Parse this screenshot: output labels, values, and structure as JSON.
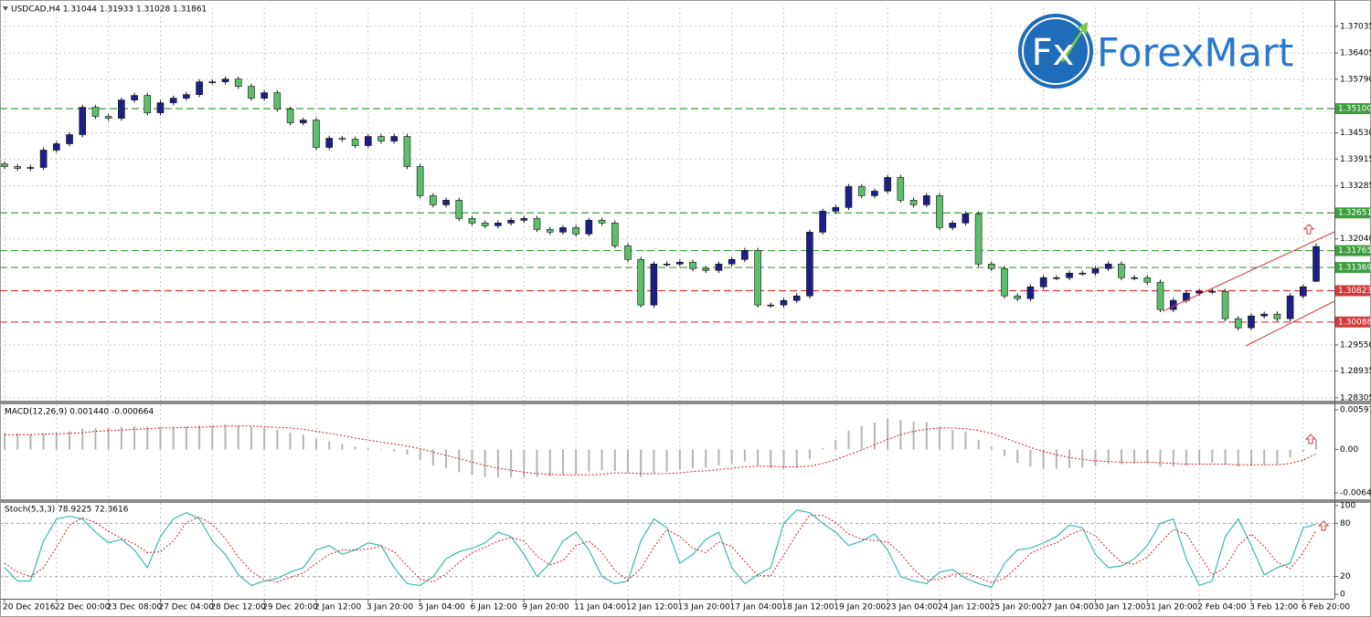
{
  "logo": {
    "icon": "Fx",
    "text": "ForexMart"
  },
  "chart_data": [
    {
      "type": "candlestick",
      "title": "USDCAD,H4  1.31044 1.31933 1.31028 1.31861",
      "categories": [
        "20 Dec 2016",
        null,
        null,
        null,
        "22 Dec 00:00",
        null,
        null,
        null,
        "23 Dec 08:00",
        null,
        null,
        null,
        "27 Dec 04:00",
        null,
        null,
        null,
        "28 Dec 12:00",
        null,
        null,
        null,
        "29 Dec 20:00",
        null,
        null,
        null,
        "2 Jan 12:00",
        null,
        null,
        null,
        "3 Jan 20:00",
        null,
        null,
        null,
        "5 Jan 04:00",
        null,
        null,
        null,
        "6 Jan 12:00",
        null,
        null,
        null,
        "9 Jan 20:00",
        null,
        null,
        null,
        "11 Jan 04:00",
        null,
        null,
        null,
        "12 Jan 12:00",
        null,
        null,
        null,
        "13 Jan 20:00",
        null,
        null,
        null,
        "17 Jan 04:00",
        null,
        null,
        null,
        "18 Jan 12:00",
        null,
        null,
        null,
        "19 Jan 20:00",
        null,
        null,
        null,
        "23 Jan 04:00",
        null,
        null,
        null,
        "24 Jan 12:00",
        null,
        null,
        null,
        "25 Jan 20:00",
        null,
        null,
        null,
        "27 Jan 04:00",
        null,
        null,
        null,
        "30 Jan 12:00",
        null,
        null,
        null,
        "31 Jan 20:00",
        null,
        null,
        null,
        "2 Feb 04:00",
        null,
        null,
        null,
        "3 Feb 12:00",
        null,
        null,
        null,
        "6 Feb 20:00",
        null
      ],
      "open": [
        1.338,
        1.3374,
        1.33697,
        1.33718,
        1.34125,
        1.34275,
        1.34489,
        1.35131,
        1.34917,
        1.34874,
        1.35302,
        1.35409,
        1.35002,
        1.35238,
        1.35345,
        1.3543,
        1.3573,
        1.3573,
        1.35794,
        1.35623,
        1.35345,
        1.35473,
        1.35088,
        1.34767,
        1.34831,
        1.34189,
        1.34403,
        1.34382,
        1.34232,
        1.34446,
        1.34339,
        1.34446,
        1.3374,
        1.33055,
        1.32841,
        1.32948,
        1.3252,
        1.32413,
        1.32349,
        1.32413,
        1.32477,
        1.3252,
        1.32263,
        1.32199,
        1.32306,
        1.32156,
        1.32477,
        1.32413,
        1.31878,
        1.31557,
        1.30487,
        1.3145,
        1.3145,
        1.31493,
        1.31343,
        1.313,
        1.3145,
        1.31557,
        1.31771,
        1.30487,
        1.30487,
        1.30594,
        1.30701,
        1.32199,
        1.32691,
        1.32777,
        1.33269,
        1.33055,
        1.33162,
        1.33483,
        1.32948,
        1.32841,
        1.33055,
        1.32306,
        1.32413,
        1.32627,
        1.3145,
        1.31343,
        1.30701,
        1.30637,
        1.30915,
        1.31129,
        1.31129,
        1.31236,
        1.31236,
        1.31343,
        1.3145,
        1.31129,
        1.31129,
        1.31022,
        1.3038,
        1.30594,
        1.30765,
        1.30808,
        1.30808,
        1.30166,
        1.29952,
        1.3023,
        1.30273,
        1.30166,
        1.30701,
        1.31044
      ],
      "high": [
        1.3386,
        1.338,
        1.33778,
        1.34185,
        1.34335,
        1.34549,
        1.35191,
        1.35191,
        1.34977,
        1.35362,
        1.35469,
        1.35469,
        1.35298,
        1.35405,
        1.3549,
        1.3579,
        1.3579,
        1.35854,
        1.35854,
        1.35683,
        1.35533,
        1.35533,
        1.35148,
        1.34891,
        1.34891,
        1.34463,
        1.34463,
        1.34442,
        1.34506,
        1.34506,
        1.34506,
        1.34506,
        1.338,
        1.33115,
        1.33008,
        1.33008,
        1.3258,
        1.32473,
        1.32473,
        1.32537,
        1.3258,
        1.3258,
        1.32323,
        1.32366,
        1.32366,
        1.32537,
        1.32537,
        1.32473,
        1.31938,
        1.31617,
        1.3151,
        1.3151,
        1.31553,
        1.31553,
        1.31403,
        1.3151,
        1.31617,
        1.31831,
        1.31831,
        1.30547,
        1.30654,
        1.30761,
        1.32259,
        1.32751,
        1.32837,
        1.33329,
        1.33329,
        1.33222,
        1.33543,
        1.33543,
        1.33008,
        1.33115,
        1.33115,
        1.32473,
        1.32687,
        1.32687,
        1.3151,
        1.31403,
        1.30761,
        1.30975,
        1.31189,
        1.31189,
        1.31296,
        1.31296,
        1.31403,
        1.3151,
        1.3151,
        1.31189,
        1.31189,
        1.31082,
        1.30654,
        1.30825,
        1.30868,
        1.30868,
        1.30868,
        1.30226,
        1.3029,
        1.30333,
        1.30333,
        1.30761,
        1.30975,
        1.31933
      ],
      "low": [
        1.3368,
        1.33637,
        1.33637,
        1.33658,
        1.34065,
        1.34215,
        1.34429,
        1.34857,
        1.34814,
        1.34814,
        1.35242,
        1.34942,
        1.34942,
        1.35178,
        1.35285,
        1.3537,
        1.3567,
        1.3567,
        1.35563,
        1.35285,
        1.35285,
        1.35028,
        1.34707,
        1.34707,
        1.34129,
        1.34129,
        1.34322,
        1.34172,
        1.34172,
        1.34279,
        1.34279,
        1.3368,
        1.32995,
        1.32781,
        1.32781,
        1.3246,
        1.32353,
        1.32289,
        1.32289,
        1.32353,
        1.32417,
        1.32203,
        1.32139,
        1.32139,
        1.32096,
        1.32096,
        1.32353,
        1.31818,
        1.31497,
        1.30427,
        1.30427,
        1.3139,
        1.3139,
        1.31283,
        1.3124,
        1.3124,
        1.3139,
        1.31497,
        1.30427,
        1.30427,
        1.30427,
        1.30534,
        1.30641,
        1.32139,
        1.32631,
        1.32717,
        1.32995,
        1.32995,
        1.33102,
        1.32888,
        1.32781,
        1.32781,
        1.32246,
        1.32246,
        1.32353,
        1.3139,
        1.31283,
        1.30641,
        1.30577,
        1.30577,
        1.30855,
        1.31069,
        1.31069,
        1.31176,
        1.31176,
        1.31283,
        1.31069,
        1.31069,
        1.30962,
        1.3032,
        1.3032,
        1.30534,
        1.30705,
        1.30748,
        1.30106,
        1.29892,
        1.29892,
        1.3017,
        1.30106,
        1.30106,
        1.30641,
        1.31028
      ],
      "close": [
        1.3374,
        1.33697,
        1.33718,
        1.34125,
        1.34275,
        1.34489,
        1.35131,
        1.34917,
        1.34874,
        1.35302,
        1.35409,
        1.35002,
        1.35238,
        1.35345,
        1.3543,
        1.3573,
        1.3573,
        1.35794,
        1.35623,
        1.35345,
        1.35473,
        1.35088,
        1.34767,
        1.34831,
        1.34189,
        1.34403,
        1.34382,
        1.34232,
        1.34446,
        1.34339,
        1.34446,
        1.3374,
        1.33055,
        1.32841,
        1.32948,
        1.3252,
        1.32413,
        1.32349,
        1.32413,
        1.32477,
        1.3252,
        1.32263,
        1.32199,
        1.32306,
        1.32156,
        1.32477,
        1.32413,
        1.31878,
        1.31557,
        1.30487,
        1.3145,
        1.3145,
        1.31493,
        1.31343,
        1.313,
        1.3145,
        1.31557,
        1.31771,
        1.30487,
        1.30487,
        1.30594,
        1.30701,
        1.32199,
        1.32691,
        1.32777,
        1.33269,
        1.33055,
        1.33162,
        1.33483,
        1.32948,
        1.32841,
        1.33055,
        1.32306,
        1.32413,
        1.32627,
        1.3145,
        1.31343,
        1.30701,
        1.30637,
        1.30915,
        1.31129,
        1.31129,
        1.31236,
        1.31236,
        1.31343,
        1.3145,
        1.31129,
        1.31129,
        1.31022,
        1.3038,
        1.30594,
        1.30765,
        1.30808,
        1.30808,
        1.30166,
        1.29952,
        1.3023,
        1.30273,
        1.30166,
        1.30701,
        1.30915,
        1.31861
      ],
      "up_color": "#1c1f86",
      "down_color": "#5cbf6a",
      "ylim": [
        1.2824,
        1.3748
      ],
      "yticks": [
        1.37035,
        1.36405,
        {
          "value": 1.3579,
          "label": "1.35790"
        },
        {
          "value": 1.3453,
          "label": "1.34530"
        },
        1.33915,
        1.33285,
        {
          "value": 1.3204,
          "label": "1.32040"
        },
        {
          "value": 1.2955,
          "label": "1.29550"
        },
        1.28935,
        1.28305
      ],
      "levels": [
        {
          "value": 1.351,
          "label": "1.35100",
          "color": "#3f9e3f"
        },
        {
          "value": 1.32651,
          "label": "1.32651",
          "color": "#3f9e3f"
        },
        {
          "value": 1.31765,
          "label": "1.31765",
          "color": "#3f9e3f"
        },
        {
          "value": 1.31369,
          "label": "1.31369",
          "color": "#3f9e3f"
        },
        {
          "value": 1.30823,
          "label": "1.30823",
          "color": "#d23b3b"
        },
        {
          "value": 1.30088,
          "label": "1.30088",
          "color": "#d23b3b"
        }
      ],
      "grid": true
    },
    {
      "type": "macd",
      "title": "MACD(12,26,9) 0.001440 -0.000664",
      "main": {
        "color": "#b4b4b4",
        "values": [
          0.0024,
          0.0024,
          0.0023,
          0.0024,
          0.0025,
          0.0027,
          0.0031,
          0.0032,
          0.0032,
          0.0034,
          0.0035,
          0.0034,
          0.0034,
          0.0034,
          0.0034,
          0.0036,
          0.0036,
          0.0037,
          0.0036,
          0.0034,
          0.0032,
          0.0029,
          0.0025,
          0.0022,
          0.0016,
          0.0012,
          0.0008,
          0.0004,
          0.0002,
          -0.0001,
          -0.0003,
          -0.0008,
          -0.0016,
          -0.0024,
          -0.0028,
          -0.0034,
          -0.0038,
          -0.0041,
          -0.0042,
          -0.0042,
          -0.0041,
          -0.0041,
          -0.004,
          -0.0038,
          -0.0037,
          -0.0033,
          -0.0031,
          -0.0032,
          -0.0034,
          -0.0041,
          -0.0036,
          -0.0033,
          -0.003,
          -0.0028,
          -0.0027,
          -0.0024,
          -0.0021,
          -0.0018,
          -0.0024,
          -0.0028,
          -0.0029,
          -0.0028,
          -0.0014,
          0.0002,
          0.0014,
          0.0028,
          0.0035,
          0.004,
          0.0046,
          0.0044,
          0.0042,
          0.0041,
          0.0034,
          0.0029,
          0.0026,
          0.0014,
          0.0004,
          -0.001,
          -0.002,
          -0.0026,
          -0.0028,
          -0.0029,
          -0.0028,
          -0.0027,
          -0.0025,
          -0.0022,
          -0.0022,
          -0.0021,
          -0.0021,
          -0.0026,
          -0.0026,
          -0.0024,
          -0.0022,
          -0.002,
          -0.0023,
          -0.0026,
          -0.0025,
          -0.0023,
          -0.0022,
          -0.0012,
          -0.0004,
          0.00144
        ]
      },
      "signal": {
        "color": "#d02020",
        "values": [
          0.0022,
          0.0022,
          0.0022,
          0.0023,
          0.0023,
          0.0024,
          0.0025,
          0.0027,
          0.0028,
          0.0029,
          0.003,
          0.0031,
          0.0032,
          0.0032,
          0.0033,
          0.0033,
          0.0034,
          0.0035,
          0.0035,
          0.0035,
          0.0034,
          0.0033,
          0.0032,
          0.003,
          0.0027,
          0.0024,
          0.0021,
          0.0017,
          0.0014,
          0.0011,
          0.0008,
          0.0005,
          0.0001,
          -0.0004,
          -0.0009,
          -0.0014,
          -0.0019,
          -0.0024,
          -0.0028,
          -0.0031,
          -0.0034,
          -0.0036,
          -0.0037,
          -0.0038,
          -0.0038,
          -0.0038,
          -0.0037,
          -0.0035,
          -0.0035,
          -0.0036,
          -0.0036,
          -0.0036,
          -0.0035,
          -0.0033,
          -0.0032,
          -0.003,
          -0.0028,
          -0.0026,
          -0.0025,
          -0.0025,
          -0.0026,
          -0.0026,
          -0.0025,
          -0.0021,
          -0.0015,
          -0.0008,
          -0.0001,
          0.0007,
          0.0015,
          0.0022,
          0.0027,
          0.003,
          0.0032,
          0.0032,
          0.0031,
          0.0028,
          0.0024,
          0.0017,
          0.001,
          0.0003,
          -0.0003,
          -0.0008,
          -0.0012,
          -0.0015,
          -0.0017,
          -0.0018,
          -0.0019,
          -0.0019,
          -0.0019,
          -0.002,
          -0.0021,
          -0.0022,
          -0.0022,
          -0.0022,
          -0.0022,
          -0.0023,
          -0.0023,
          -0.0023,
          -0.0023,
          -0.0021,
          -0.0016,
          -0.000664
        ]
      },
      "ylim": [
        -0.00744,
        0.00673
      ],
      "yticks": [
        0.005912,
        {
          "value": 0,
          "label": "0.00"
        },
        -0.006486
      ]
    },
    {
      "type": "stochastic",
      "title": "Stoch(5,3,3) 78.9225 72.3616",
      "main": {
        "color": "#3fb6b0",
        "values": [
          30,
          15,
          15,
          60,
          85,
          88,
          85,
          70,
          58,
          62,
          50,
          30,
          65,
          85,
          92,
          85,
          60,
          45,
          22,
          10,
          15,
          18,
          25,
          30,
          50,
          55,
          45,
          50,
          58,
          55,
          30,
          12,
          10,
          20,
          40,
          48,
          52,
          58,
          70,
          65,
          45,
          20,
          35,
          60,
          70,
          50,
          20,
          12,
          15,
          60,
          85,
          75,
          35,
          45,
          62,
          70,
          30,
          12,
          22,
          30,
          80,
          95,
          92,
          80,
          70,
          55,
          60,
          68,
          50,
          20,
          15,
          12,
          25,
          28,
          18,
          12,
          8,
          35,
          50,
          52,
          58,
          65,
          78,
          75,
          45,
          30,
          32,
          40,
          55,
          80,
          85,
          40,
          10,
          15,
          65,
          85,
          55,
          22,
          30,
          35,
          75,
          78.9225
        ]
      },
      "signal": {
        "color": "#d02020",
        "values": [
          35,
          25,
          20,
          30,
          53,
          78,
          86,
          81,
          71,
          63,
          57,
          47,
          48,
          60,
          81,
          87,
          79,
          63,
          42,
          26,
          16,
          14,
          19,
          24,
          35,
          45,
          50,
          50,
          51,
          54,
          48,
          32,
          17,
          14,
          23,
          36,
          47,
          53,
          60,
          64,
          60,
          43,
          33,
          38,
          55,
          60,
          47,
          27,
          16,
          29,
          53,
          73,
          65,
          52,
          47,
          59,
          54,
          37,
          21,
          21,
          44,
          68,
          89,
          89,
          81,
          68,
          62,
          61,
          59,
          46,
          28,
          16,
          17,
          22,
          24,
          19,
          13,
          18,
          31,
          46,
          53,
          58,
          67,
          73,
          66,
          50,
          36,
          34,
          42,
          58,
          73,
          68,
          45,
          22,
          30,
          55,
          68,
          54,
          36,
          29,
          47,
          72.3616
        ]
      },
      "ylim": [
        -5,
        103
      ],
      "yticks": [
        100,
        80,
        20,
        0
      ],
      "levels": [
        80,
        20
      ]
    }
  ]
}
